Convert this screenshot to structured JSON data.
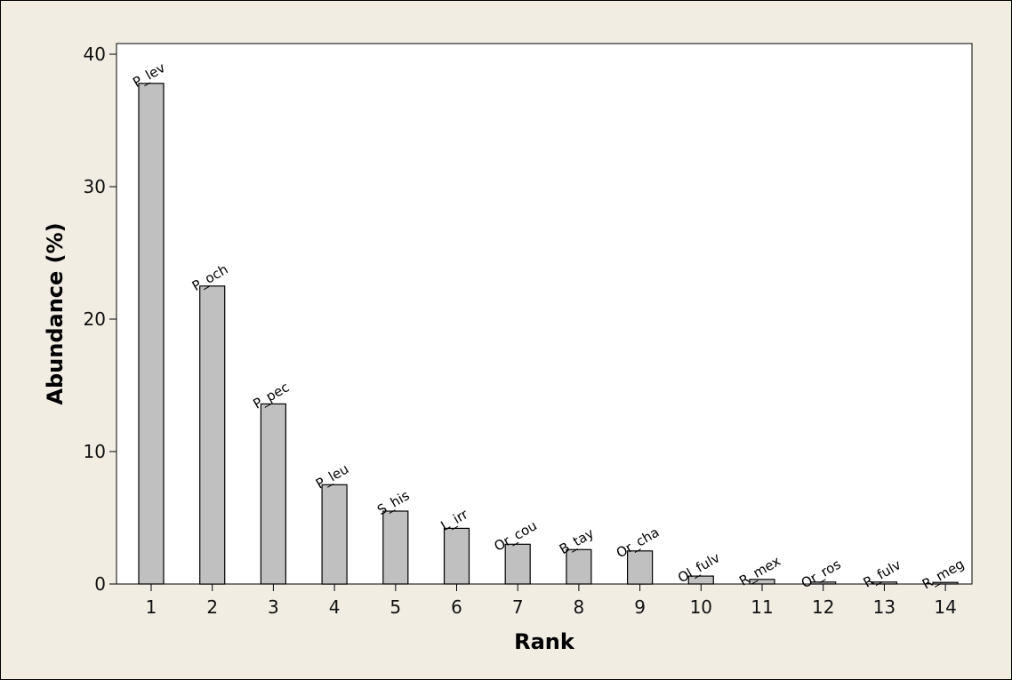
{
  "chart_data": {
    "type": "bar",
    "title": "",
    "xlabel": "Rank",
    "ylabel": "Abundance (%)",
    "categories": [
      "1",
      "2",
      "3",
      "4",
      "5",
      "6",
      "7",
      "8",
      "9",
      "10",
      "11",
      "12",
      "13",
      "14"
    ],
    "bar_labels": [
      "P_lev",
      "P_och",
      "P_pec",
      "P_leu",
      "S_his",
      "L_irr",
      "Or_cou",
      "B_tay",
      "Or_cha",
      "Ol_fulv",
      "R_mex",
      "Or_ros",
      "R_fulv",
      "R_meg"
    ],
    "values": [
      37.8,
      22.5,
      13.6,
      7.5,
      5.5,
      4.2,
      3.0,
      2.6,
      2.5,
      0.6,
      0.35,
      0.15,
      0.15,
      0.12
    ],
    "yticks": [
      "0",
      "10",
      "20",
      "30",
      "40"
    ],
    "ylim": [
      0,
      40
    ],
    "grid": false,
    "colors": {
      "background": "#f1ede3",
      "plot_background": "#ffffff",
      "bar_fill": "#c0c0c0",
      "bar_stroke": "#000000"
    }
  }
}
